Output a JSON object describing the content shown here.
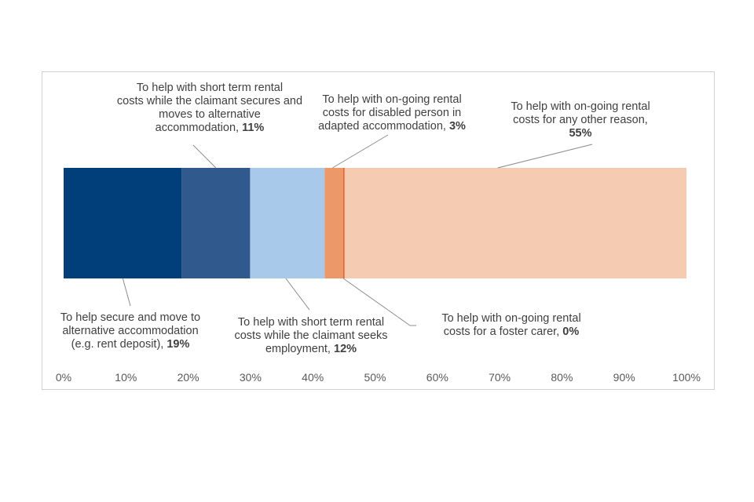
{
  "chart_data": {
    "type": "bar",
    "orientation": "horizontal-stacked-100",
    "series": [
      {
        "name": "To help secure and move to alternative accommodation (e.g. rent deposit)",
        "value": 19,
        "value_label": "19%",
        "color": "#003f7a"
      },
      {
        "name": "To help with short term rental costs while the claimant secures and moves to alternative accommodation",
        "value": 11,
        "value_label": "11%",
        "color": "#305a8d"
      },
      {
        "name": "To help with short term rental costs while the claimant seeks employment",
        "value": 12,
        "value_label": "12%",
        "color": "#a9c9ea"
      },
      {
        "name": "To help with on-going rental costs for disabled person in adapted accommodation",
        "value": 3,
        "value_label": "3%",
        "color": "#ec9868"
      },
      {
        "name": "To help with on-going rental costs for a foster carer",
        "value": 0.2,
        "value_label": "0%",
        "color": "#e0531a"
      },
      {
        "name": "To help with on-going rental costs for any other reason",
        "value": 55,
        "value_label": "55%",
        "color": "#f5cbb2"
      }
    ],
    "label_lines": {
      "s0": [
        "To help secure and move to",
        "alternative accommodation",
        "(e.g. rent deposit), "
      ],
      "s1": [
        "To help with short term rental",
        "costs while the claimant secures and",
        "moves to alternative",
        "accommodation, "
      ],
      "s2": [
        "To help with short term rental",
        "costs while the claimant seeks",
        "employment,  "
      ],
      "s3": [
        "To help with on-going rental",
        "costs for disabled person in",
        "adapted accommodation, "
      ],
      "s4": [
        "To help with on-going rental",
        "costs for a foster carer, "
      ],
      "s5": [
        "To help with on-going rental",
        "costs for any other reason,",
        ""
      ]
    },
    "x_ticks": [
      "0%",
      "10%",
      "20%",
      "30%",
      "40%",
      "50%",
      "60%",
      "70%",
      "80%",
      "90%",
      "100%"
    ],
    "xlim": [
      0,
      100
    ],
    "grid": false,
    "title": ""
  }
}
